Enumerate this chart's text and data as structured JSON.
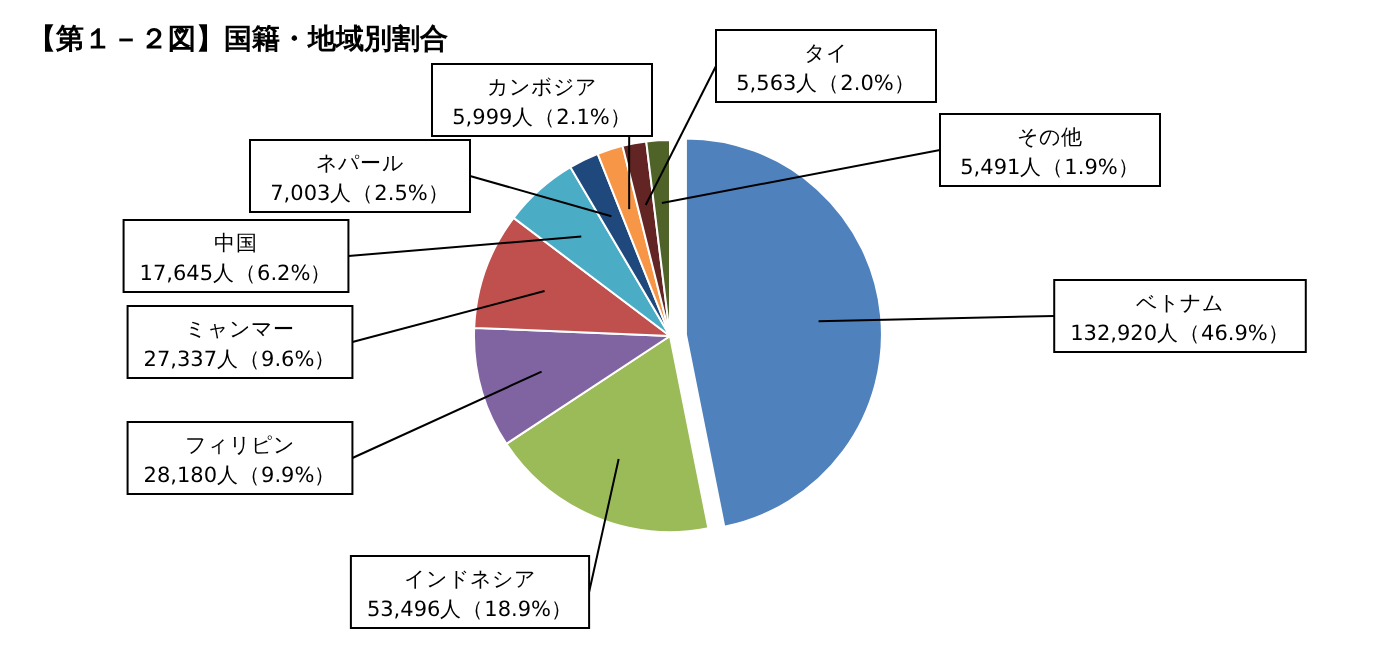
{
  "chart_data": {
    "type": "pie",
    "title": "【第１－２図】国籍・地域別割合",
    "categories": [
      "ベトナム",
      "インドネシア",
      "フィリピン",
      "ミャンマー",
      "中国",
      "ネパール",
      "カンボジア",
      "タイ",
      "その他"
    ],
    "values": [
      132920,
      53496,
      28180,
      27337,
      17645,
      7003,
      5999,
      5563,
      5491
    ],
    "value_labels": [
      "132,920人（46.9%）",
      "53,496人（18.9%）",
      "28,180人（9.9%）",
      "27,337人（9.6%）",
      "17,645人（6.2%）",
      "7,003人（2.5%）",
      "5,999人（2.1%）",
      "5,563人（2.0%）",
      "5,491人（1.9%）"
    ],
    "colors": [
      "#4f81bd",
      "#9bbb59",
      "#8064a2",
      "#c0504d",
      "#4bacc6",
      "#1f497d",
      "#f79646",
      "#632523",
      "#4f6228"
    ]
  }
}
